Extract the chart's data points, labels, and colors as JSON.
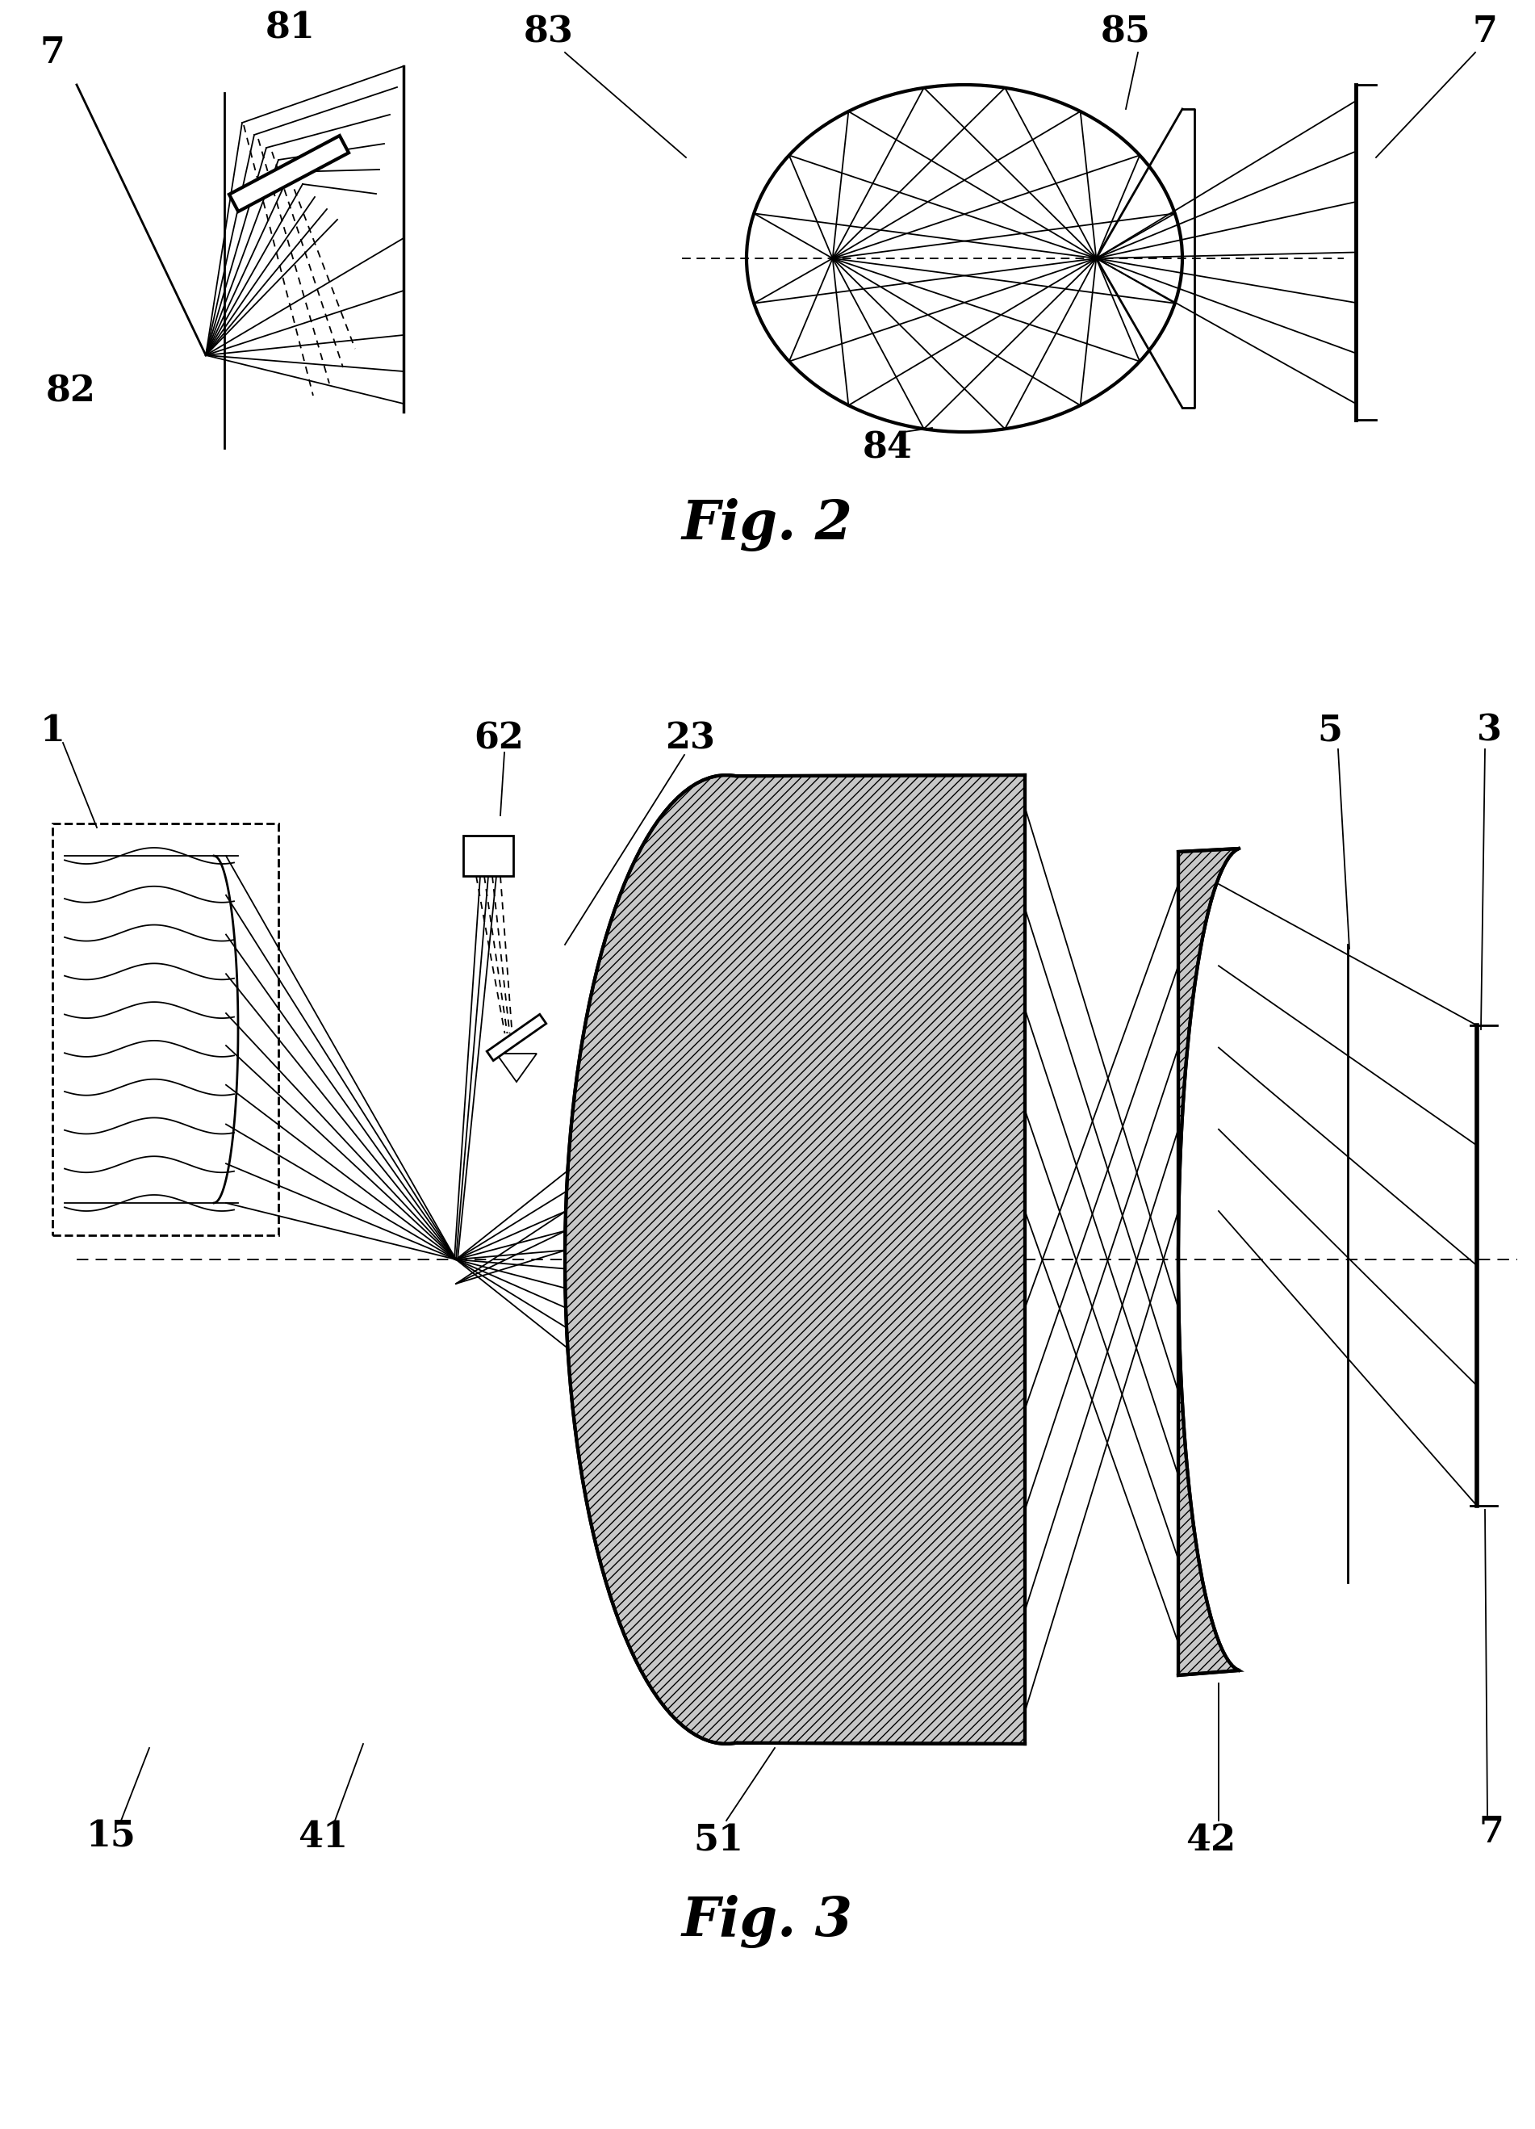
{
  "fig_width": 19.02,
  "fig_height": 26.37,
  "bg_color": "#ffffff",
  "line_color": "#000000",
  "fig2_title": "Fig. 2",
  "fig3_title": "Fig. 3"
}
